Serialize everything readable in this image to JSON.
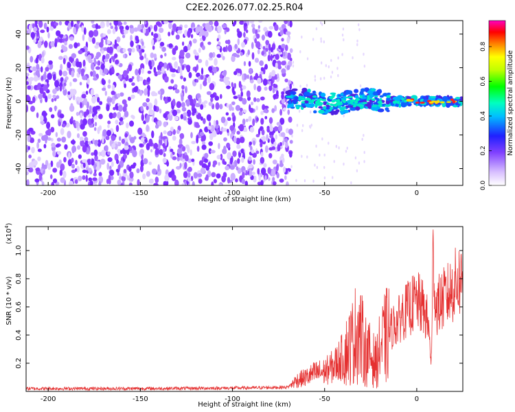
{
  "page_title": "C2E2.2026.077.02.25.R04",
  "chart_data": [
    {
      "type": "heatmap",
      "title": "C2E2.2026.077.02.25.R04",
      "xlabel": "Height of straight line (km)",
      "ylabel": "Frequency (Hz)",
      "xlim": [
        -212,
        25
      ],
      "ylim": [
        -50,
        48
      ],
      "x_ticks": [
        -200,
        -150,
        -100,
        -50,
        0
      ],
      "x_tick_labels": [
        "-200",
        "-150",
        "-100",
        "-50",
        "0"
      ],
      "y_ticks": [
        -40,
        -20,
        0,
        20,
        40
      ],
      "y_tick_labels": [
        "-40",
        "-20",
        "0",
        "20",
        "40"
      ],
      "noise_region_km": [
        -212,
        -68
      ],
      "signal_region_km": [
        -70,
        25
      ],
      "signal_center_freq_hz": 0,
      "colorbar": {
        "label": "Normalized spectral amplitude",
        "range": [
          0.0,
          0.95
        ],
        "ticks": [
          0.0,
          0.2,
          0.4,
          0.6,
          0.8
        ],
        "tick_labels": [
          "0.0",
          "0.2",
          "0.4",
          "0.6",
          "0.8"
        ]
      }
    },
    {
      "type": "line",
      "xlabel": "Height of straight line (km)",
      "ylabel": "SNR (10 * v/v)",
      "scale_label": "(x10",
      "scale_exp": "4",
      "scale_close": ")",
      "xlim": [
        -212,
        25
      ],
      "ylim": [
        0,
        1.17
      ],
      "x_ticks": [
        -200,
        -150,
        -100,
        -50,
        0
      ],
      "x_tick_labels": [
        "-200",
        "-150",
        "-100",
        "-50",
        "0"
      ],
      "y_ticks": [
        0.2,
        0.4,
        0.6,
        0.8,
        1.0
      ],
      "y_tick_labels": [
        "0.2",
        "0.4",
        "0.6",
        "0.8",
        "1.0"
      ],
      "series": [
        {
          "name": "SNR",
          "color": "#e53030",
          "x": [
            -212,
            -180,
            -150,
            -120,
            -90,
            -70,
            -65,
            -60,
            -55,
            -50,
            -45,
            -40,
            -35,
            -32,
            -28,
            -25,
            -22,
            -20,
            -17,
            -15,
            -12,
            -10,
            -8,
            -5,
            -2,
            0,
            3,
            6,
            8,
            9,
            10,
            12,
            15,
            18,
            20,
            22,
            25
          ],
          "y": [
            0.02,
            0.02,
            0.02,
            0.022,
            0.025,
            0.03,
            0.08,
            0.1,
            0.13,
            0.14,
            0.18,
            0.25,
            0.35,
            0.45,
            0.3,
            0.25,
            0.2,
            0.3,
            0.38,
            0.42,
            0.48,
            0.5,
            0.55,
            0.58,
            0.62,
            0.64,
            0.6,
            0.5,
            0.2,
            1.1,
            0.6,
            0.62,
            0.66,
            0.7,
            0.74,
            0.78,
            0.8
          ]
        }
      ]
    }
  ]
}
